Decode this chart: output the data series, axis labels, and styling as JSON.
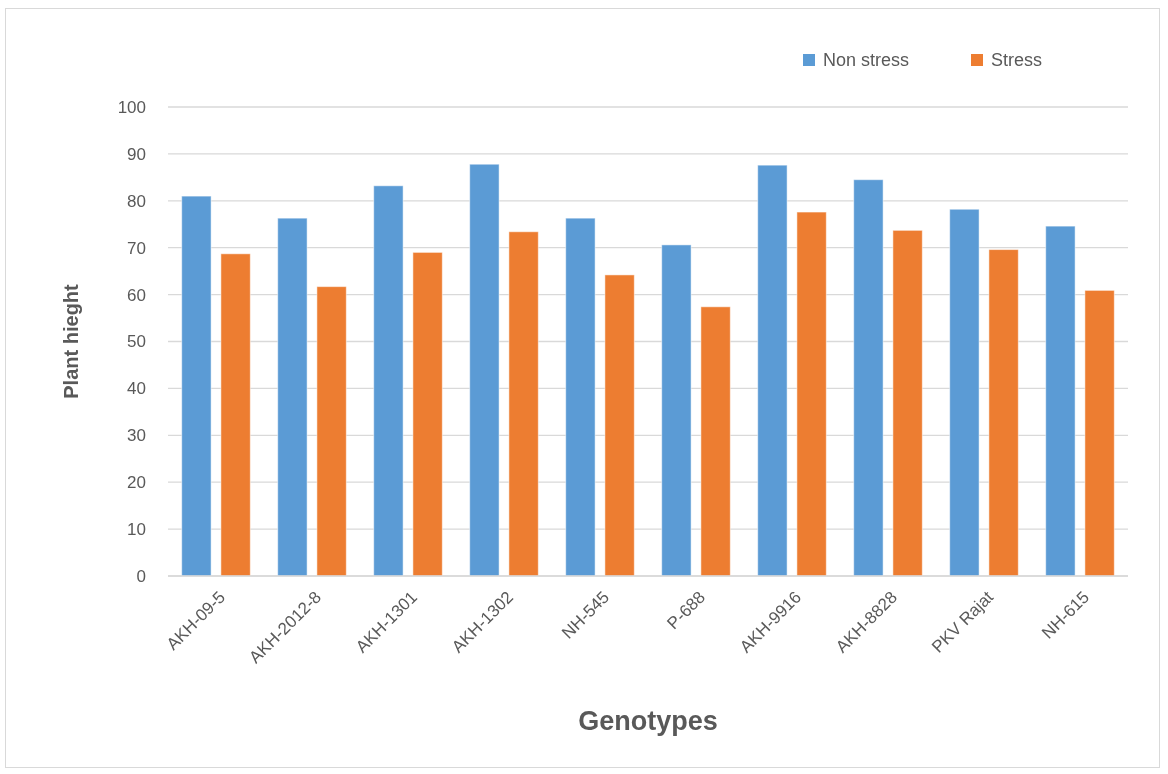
{
  "chart_data": {
    "type": "bar",
    "xlabel": "Genotypes",
    "ylabel": "Plant hieght",
    "categories": [
      "AKH-09-5",
      "AKH-2012-8",
      "AKH-1301",
      "AKH-1302",
      "NH-545",
      "P-688",
      "AKH-9916",
      "AKH-8828",
      "PKV Rajat",
      "NH-615"
    ],
    "series": [
      {
        "name": "Non stress",
        "color": "#5b9bd5",
        "values": [
          81.0,
          76.3,
          83.2,
          87.8,
          76.3,
          70.6,
          87.6,
          84.5,
          78.2,
          74.6
        ]
      },
      {
        "name": "Stress",
        "color": "#ed7d31",
        "values": [
          68.7,
          61.7,
          69.0,
          73.4,
          64.2,
          57.4,
          77.6,
          73.7,
          69.6,
          60.9
        ]
      }
    ],
    "ylim": [
      0,
      100
    ],
    "yticks": [
      0,
      10,
      20,
      30,
      40,
      50,
      60,
      70,
      80,
      90,
      100
    ],
    "grid": "y",
    "legend": "top right"
  }
}
